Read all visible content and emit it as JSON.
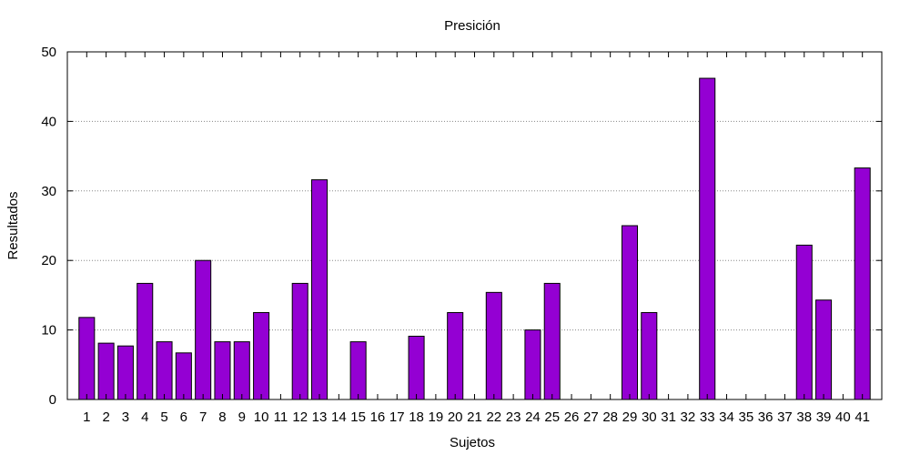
{
  "chart_data": {
    "type": "bar",
    "title": "Presición",
    "xlabel": "Sujetos",
    "ylabel": "Resultados",
    "ylim": [
      0,
      50
    ],
    "yticks": [
      "0",
      "10",
      "20",
      "30",
      "40",
      "50"
    ],
    "grid": true,
    "legend": "none",
    "bar_color": "#9400d3",
    "categories": [
      "1",
      "2",
      "3",
      "4",
      "5",
      "6",
      "7",
      "8",
      "9",
      "10",
      "11",
      "12",
      "13",
      "14",
      "15",
      "16",
      "17",
      "18",
      "19",
      "20",
      "21",
      "22",
      "23",
      "24",
      "25",
      "26",
      "27",
      "28",
      "29",
      "30",
      "31",
      "32",
      "33",
      "34",
      "35",
      "36",
      "37",
      "38",
      "39",
      "40",
      "41"
    ],
    "values": [
      11.8,
      8.1,
      7.7,
      16.7,
      8.3,
      6.7,
      20.0,
      8.3,
      8.3,
      12.5,
      0,
      16.7,
      31.6,
      0,
      8.3,
      0,
      0,
      9.1,
      0,
      12.5,
      0,
      15.4,
      0,
      10.0,
      16.7,
      0,
      0,
      0,
      25.0,
      12.5,
      0,
      0,
      46.2,
      0,
      0,
      0,
      0,
      22.2,
      14.3,
      0,
      33.3
    ]
  }
}
